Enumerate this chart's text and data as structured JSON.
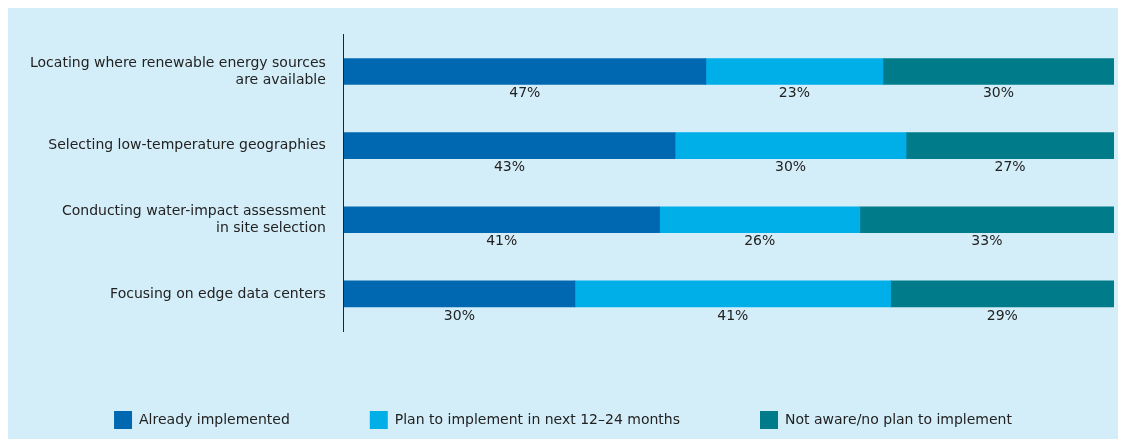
{
  "chart_data": {
    "type": "bar",
    "orientation": "horizontal",
    "stacked": true,
    "categories": [
      "Locating where renewable energy sources\nare available",
      "Selecting low-temperature geographies",
      "Conducting water-impact assessment\nin site selection",
      "Focusing on edge data centers"
    ],
    "series": [
      {
        "name": "Already implemented",
        "color": "#0068b0",
        "values": [
          47,
          43,
          41,
          30
        ],
        "value_labels": [
          "47%",
          "43%",
          "41%",
          "30%"
        ]
      },
      {
        "name": "Plan to implement in next 12–24 months",
        "color": "#00aee8",
        "values": [
          23,
          30,
          26,
          41
        ],
        "value_labels": [
          "23%",
          "30%",
          "26%",
          "41%"
        ]
      },
      {
        "name": "Not aware/no plan to implement",
        "color": "#007b8a",
        "values": [
          30,
          27,
          33,
          29
        ],
        "value_labels": [
          "30%",
          "27%",
          "33%",
          "29%"
        ]
      }
    ],
    "tick_labels": "y",
    "legend": "bottom"
  }
}
